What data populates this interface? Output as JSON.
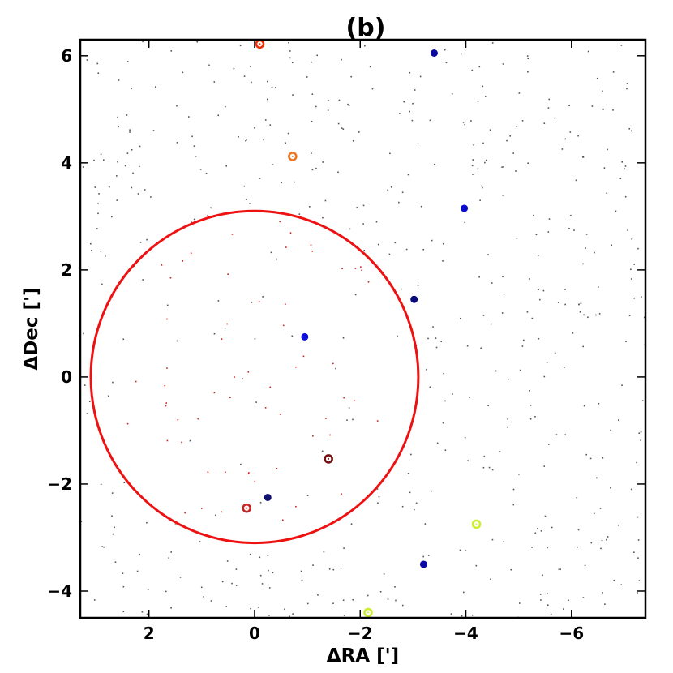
{
  "chart_data": {
    "type": "scatter",
    "title": "(b)",
    "xlabel": "ΔRA [']",
    "ylabel": "ΔDec [']",
    "xlim": [
      3.3,
      -7.4
    ],
    "ylim": [
      -4.5,
      6.3
    ],
    "x_reversed": true,
    "x_ticks": [
      2,
      0,
      -2,
      -4,
      -6
    ],
    "x_tick_labels": [
      "2",
      "0",
      "−2",
      "−4",
      "−6"
    ],
    "y_ticks": [
      -4,
      -2,
      0,
      2,
      4,
      6
    ],
    "y_tick_labels": [
      "−4",
      "−2",
      "0",
      "2",
      "4",
      "6"
    ],
    "grid": false,
    "circle": {
      "center": [
        0,
        0
      ],
      "radius": 3.1,
      "color": "#ee1111"
    },
    "colors": {
      "field_stars": "#555555",
      "inside_stars": "#cc2222",
      "filled_markers": "#0000cc"
    },
    "filled_markers": [
      {
        "x": -3.4,
        "y": 6.05,
        "color": "#0a0aa0"
      },
      {
        "x": -3.97,
        "y": 3.15,
        "color": "#0a0ad0"
      },
      {
        "x": -3.02,
        "y": 1.45,
        "color": "#0a0a80"
      },
      {
        "x": -0.95,
        "y": 0.75,
        "color": "#1010dd"
      },
      {
        "x": -0.25,
        "y": -2.25,
        "color": "#101070"
      },
      {
        "x": -3.2,
        "y": -3.5,
        "color": "#0a0aa0"
      }
    ],
    "open_markers": [
      {
        "x": -0.1,
        "y": 6.22,
        "color": "#ee3300"
      },
      {
        "x": -0.72,
        "y": 4.12,
        "color": "#ee7722"
      },
      {
        "x": -1.4,
        "y": -1.53,
        "color": "#771111"
      },
      {
        "x": 0.15,
        "y": -2.45,
        "color": "#cc2222"
      },
      {
        "x": -4.2,
        "y": -2.75,
        "color": "#ccee33"
      },
      {
        "x": -2.15,
        "y": -4.4,
        "color": "#ccee33"
      }
    ],
    "field_star_count": 700,
    "inside_star_count": 90
  }
}
